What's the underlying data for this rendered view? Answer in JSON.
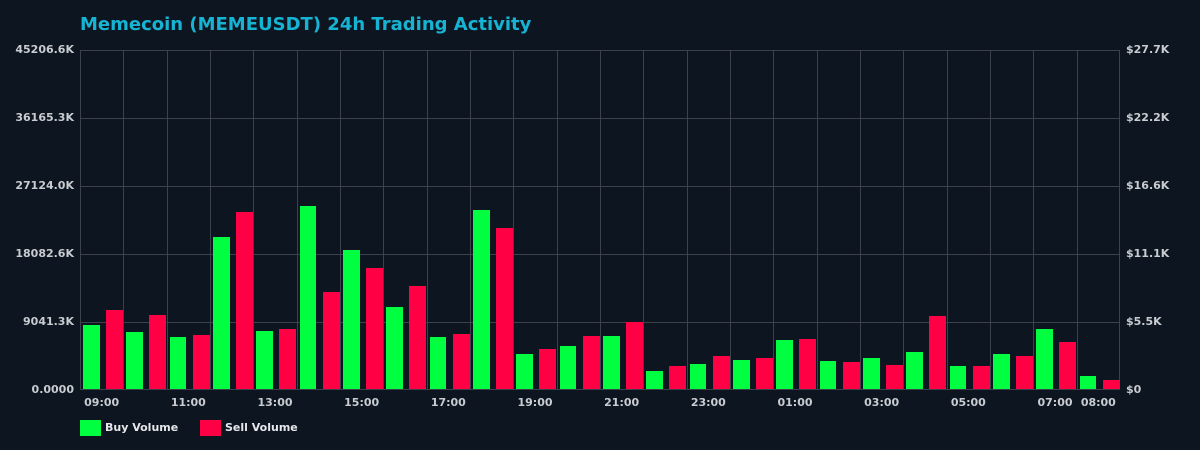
{
  "chart_data": {
    "type": "bar",
    "title": "Memecoin (MEMEUSDT) 24h Trading Activity",
    "xlabel": "",
    "ylabel": "",
    "ylim": [
      0,
      45206.6
    ],
    "y_unit": "K",
    "y_ticks_left": [
      "0.0000",
      "9041.3K",
      "18082.6K",
      "27124.0K",
      "36165.3K",
      "45206.6K"
    ],
    "y_ticks_right": [
      "$0",
      "$5.5K",
      "$11.1K",
      "$16.6K",
      "$22.2K",
      "$27.7K"
    ],
    "x_tick_labels": [
      "09:00",
      "11:00",
      "13:00",
      "15:00",
      "17:00",
      "19:00",
      "21:00",
      "23:00",
      "01:00",
      "03:00",
      "05:00",
      "07:00",
      "08:00"
    ],
    "grid": true,
    "legend_position": "bottom-left",
    "categories": [
      "09:00",
      "10:00",
      "11:00",
      "12:00",
      "13:00",
      "14:00",
      "15:00",
      "16:00",
      "17:00",
      "18:00",
      "19:00",
      "20:00",
      "21:00",
      "22:00",
      "23:00",
      "00:00",
      "01:00",
      "02:00",
      "03:00",
      "04:00",
      "05:00",
      "06:00",
      "07:00",
      "08:00"
    ],
    "series": [
      {
        "name": "Buy Volume",
        "color": "#00ff41",
        "values": [
          8510,
          7579,
          6914,
          20210,
          7712,
          24465,
          18482,
          10903,
          6914,
          23933,
          4654,
          5717,
          7047,
          2393,
          3324,
          3856,
          6515,
          3723,
          4122,
          4920,
          3058,
          4654,
          7978,
          1728
        ]
      },
      {
        "name": "Sell Volume",
        "color": "#ff0044",
        "values": [
          10504,
          9839,
          7180,
          23667,
          7978,
          12897,
          16088,
          13695,
          7313,
          21406,
          5318,
          7047,
          8908,
          3058,
          4388,
          4122,
          6648,
          3590,
          3191,
          9706,
          3058,
          4388,
          6249,
          1197
        ]
      }
    ]
  },
  "legend": {
    "buy_label": "Buy Volume",
    "sell_label": "Sell Volume"
  },
  "colors": {
    "buy": "#00ff41",
    "sell": "#ff0044",
    "title": "#17b3d3",
    "background": "#0d1620",
    "grid": "#3b424c"
  }
}
